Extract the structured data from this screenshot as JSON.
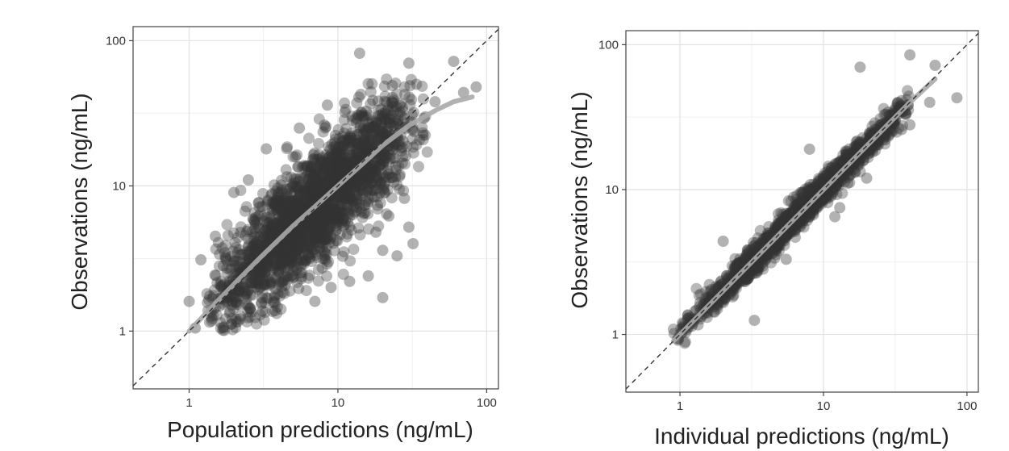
{
  "chart_data": [
    {
      "type": "scatter",
      "log_x": true,
      "log_y": true,
      "xlabel": "Population predictions (ng/mL)",
      "ylabel": "Observations (ng/mL)",
      "xlim": [
        0.42,
        120
      ],
      "ylim": [
        0.4,
        125
      ],
      "x_ticks": [
        1,
        10,
        100
      ],
      "y_ticks": [
        1,
        10,
        100
      ],
      "x_tick_labels": [
        "1",
        "10",
        "100"
      ],
      "y_tick_labels": [
        "1",
        "10",
        "100"
      ],
      "grid": true,
      "identity_line": true,
      "point_color": "#333333",
      "smooth_color": "#a8a8a8",
      "cloud": {
        "n": 2200,
        "x_center": 7,
        "x_log_sd": 0.33,
        "x_min": 1.3,
        "x_max": 40,
        "y_log_sd": 0.2,
        "y_min": 1.0,
        "y_max": 60
      },
      "outliers": [
        {
          "x": 14,
          "y": 82
        },
        {
          "x": 30,
          "y": 70
        },
        {
          "x": 60,
          "y": 72
        },
        {
          "x": 85,
          "y": 48
        },
        {
          "x": 70,
          "y": 44
        },
        {
          "x": 45,
          "y": 38
        },
        {
          "x": 28,
          "y": 8.2
        },
        {
          "x": 22,
          "y": 6.2
        },
        {
          "x": 30,
          "y": 5.2
        },
        {
          "x": 18,
          "y": 4.8
        },
        {
          "x": 32,
          "y": 4.0
        },
        {
          "x": 25,
          "y": 3.3
        },
        {
          "x": 20,
          "y": 3.6
        },
        {
          "x": 16,
          "y": 2.4
        },
        {
          "x": 12,
          "y": 2.2
        },
        {
          "x": 20,
          "y": 1.7
        },
        {
          "x": 9,
          "y": 2.0
        },
        {
          "x": 7,
          "y": 1.6
        },
        {
          "x": 1.1,
          "y": 1.05
        },
        {
          "x": 1.0,
          "y": 1.6
        },
        {
          "x": 1.2,
          "y": 3.1
        },
        {
          "x": 1.5,
          "y": 4.5
        },
        {
          "x": 2.0,
          "y": 9.0
        },
        {
          "x": 2.5,
          "y": 11
        },
        {
          "x": 3.3,
          "y": 18
        },
        {
          "x": 5.5,
          "y": 25
        },
        {
          "x": 8.5,
          "y": 36
        }
      ],
      "smooth": [
        {
          "x": 1.0,
          "y": 1.0
        },
        {
          "x": 1.5,
          "y": 1.55
        },
        {
          "x": 2.0,
          "y": 2.1
        },
        {
          "x": 3.0,
          "y": 3.2
        },
        {
          "x": 5.0,
          "y": 5.3
        },
        {
          "x": 7.0,
          "y": 7.2
        },
        {
          "x": 10,
          "y": 10
        },
        {
          "x": 15,
          "y": 14.5
        },
        {
          "x": 20,
          "y": 19
        },
        {
          "x": 30,
          "y": 26
        },
        {
          "x": 45,
          "y": 33
        },
        {
          "x": 60,
          "y": 38
        },
        {
          "x": 80,
          "y": 41
        }
      ]
    },
    {
      "type": "scatter",
      "log_x": true,
      "log_y": true,
      "xlabel": "Individual predictions (ng/mL)",
      "ylabel": "Observations (ng/mL)",
      "xlim": [
        0.42,
        120
      ],
      "ylim": [
        0.4,
        125
      ],
      "x_ticks": [
        1,
        10,
        100
      ],
      "y_ticks": [
        1,
        10,
        100
      ],
      "x_tick_labels": [
        "1",
        "10",
        "100"
      ],
      "y_tick_labels": [
        "1",
        "10",
        "100"
      ],
      "grid": true,
      "identity_line": true,
      "point_color": "#333333",
      "smooth_color": "#a8a8a8",
      "cloud": {
        "n": 1800,
        "x_center": 7,
        "x_log_sd": 0.38,
        "x_min": 0.9,
        "x_max": 40,
        "y_log_sd": 0.05,
        "y_min": 0.85,
        "y_max": 55
      },
      "outliers": [
        {
          "x": 40,
          "y": 85
        },
        {
          "x": 18,
          "y": 70
        },
        {
          "x": 60,
          "y": 72
        },
        {
          "x": 85,
          "y": 43
        },
        {
          "x": 55,
          "y": 40
        },
        {
          "x": 40,
          "y": 28
        },
        {
          "x": 35,
          "y": 26
        },
        {
          "x": 3.3,
          "y": 1.25
        },
        {
          "x": 2.0,
          "y": 4.4
        },
        {
          "x": 20,
          "y": 12
        },
        {
          "x": 12,
          "y": 6.5
        },
        {
          "x": 8.0,
          "y": 19
        },
        {
          "x": 5.5,
          "y": 3.3
        },
        {
          "x": 13,
          "y": 7.5
        },
        {
          "x": 1.4,
          "y": 1.9
        },
        {
          "x": 1.0,
          "y": 1.0
        }
      ],
      "smooth": [
        {
          "x": 0.9,
          "y": 0.9
        },
        {
          "x": 2,
          "y": 2
        },
        {
          "x": 5,
          "y": 5
        },
        {
          "x": 10,
          "y": 10
        },
        {
          "x": 20,
          "y": 20
        },
        {
          "x": 40,
          "y": 40
        },
        {
          "x": 60,
          "y": 58
        }
      ]
    }
  ]
}
